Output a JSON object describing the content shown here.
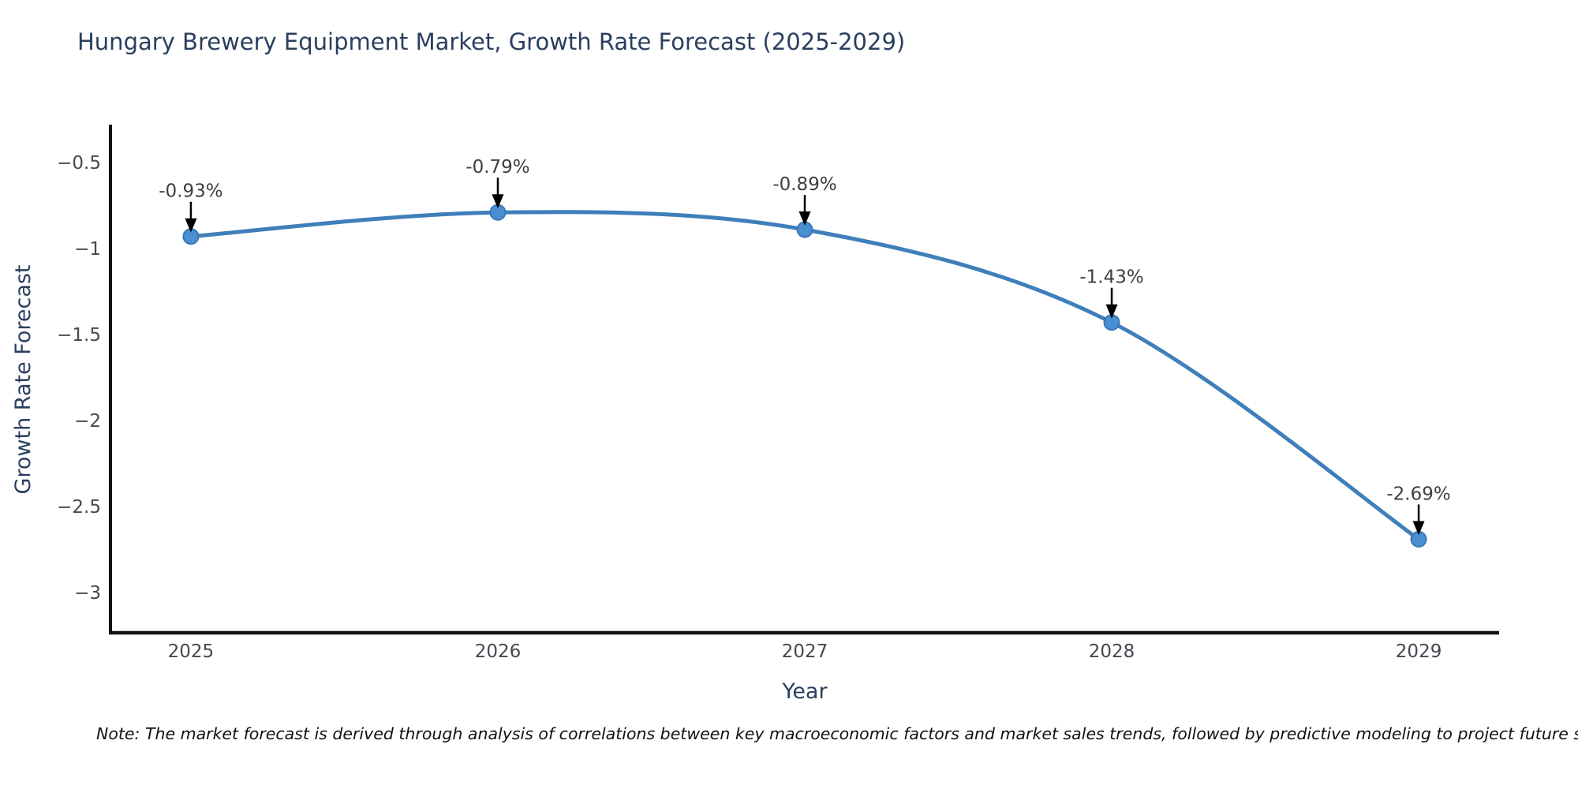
{
  "title": "Hungary Brewery Equipment Market, Growth Rate Forecast (2025-2029)",
  "note": "Note: The market forecast is derived through analysis of correlations between key macroeconomic factors and market sales trends, followed by predictive modeling to project future sales.",
  "chart_data": {
    "type": "line",
    "title": "Hungary Brewery Equipment Market, Growth Rate Forecast (2025-2029)",
    "xlabel": "Year",
    "ylabel": "Growth Rate Forecast",
    "x": [
      2025,
      2026,
      2027,
      2028,
      2029
    ],
    "series": [
      {
        "name": "Growth Rate Forecast",
        "values": [
          -0.93,
          -0.79,
          -0.89,
          -1.43,
          -2.69
        ]
      }
    ],
    "point_labels": [
      "-0.93%",
      "-0.79%",
      "-0.89%",
      "-1.43%",
      "-2.69%"
    ],
    "x_tick_labels": [
      "2025",
      "2026",
      "2027",
      "2028",
      "2029"
    ],
    "y_ticks": [
      -0.5,
      -1,
      -1.5,
      -2,
      -2.5,
      -3
    ],
    "y_tick_labels": [
      "−0.5",
      "−1",
      "−1.5",
      "−2",
      "−2.5",
      "−3"
    ],
    "xlim": [
      2024.738,
      2029.262
    ],
    "ylim": [
      -3.234,
      -0.289
    ],
    "line_shape": "spline",
    "grid": false,
    "legend": "none",
    "colors": {
      "line": "#3f7fba",
      "marker_fill": "#4a8fd2",
      "marker_edge": "#3a78b8",
      "arrow": "#000000",
      "axis_line": "#111111",
      "title_text": "#2a3f5f",
      "tick_text": "#444850",
      "annotation_text": "#3c3f44",
      "background": "#ffffff"
    }
  }
}
